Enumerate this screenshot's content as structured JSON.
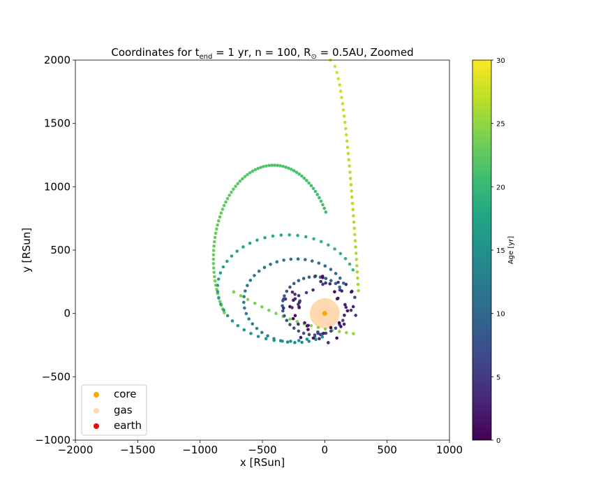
{
  "chart_data": {
    "type": "scatter",
    "title": {
      "prefix": "Coordinates for t",
      "prefix_sub": "end",
      "middle": " = 1 yr, n = 100, R",
      "middle_sub": "⊙",
      "suffix": " = 0.5AU, Zoomed"
    },
    "xlabel": "x [RSun]",
    "ylabel": "y [RSun]",
    "xlim": [
      -2000,
      1000
    ],
    "ylim": [
      -1000,
      2000
    ],
    "xticks": [
      -2000,
      -1500,
      -1000,
      -500,
      0,
      500,
      1000
    ],
    "xtick_labels": [
      "−2000",
      "−1500",
      "−1000",
      "−500",
      "0",
      "500",
      "1000"
    ],
    "yticks": [
      -1000,
      -500,
      0,
      500,
      1000,
      1500,
      2000
    ],
    "ytick_labels": [
      "−1000",
      "−500",
      "0",
      "500",
      "1000",
      "1500",
      "2000"
    ],
    "grid": false,
    "colorbar": {
      "label": "Age [yr]",
      "range": [
        0,
        30
      ],
      "ticks": [
        0,
        5,
        10,
        15,
        20,
        25,
        30
      ],
      "tick_labels": [
        "0",
        "5",
        "10",
        "15",
        "20",
        "25",
        "30"
      ],
      "colormap": "viridis"
    },
    "legend": {
      "placement": "lower-left",
      "entries": [
        {
          "label": "core",
          "color": "#ffa500"
        },
        {
          "label": "gas",
          "color": "#ffdab0"
        },
        {
          "label": "earth",
          "color": "#ff0000"
        }
      ]
    },
    "series": [
      {
        "name": "core",
        "points": [
          [
            0,
            0
          ]
        ],
        "color": "#ffa500"
      },
      {
        "name": "gas",
        "points": [
          [
            0,
            0
          ]
        ],
        "color": "#ffdab0",
        "radius_data": 120
      }
    ],
    "trajectory": {
      "start": {
        "x": 45,
        "y": 2000,
        "age": 28
      },
      "arc1": {
        "type": "path_spiral",
        "from_angle_deg": 0,
        "to_angle_deg": -70,
        "r_from": 270,
        "r_to": 300,
        "age_from": 26,
        "age_to": 25
      },
      "ellipse": {
        "center": [
          -410,
          430
        ],
        "rx": 690,
        "ry": 740,
        "from_angle_deg": 270,
        "to_angle_deg": 45,
        "age_from": 25,
        "age_to": 20
      },
      "spiral": {
        "center": [
          0,
          0
        ],
        "turns": [
          {
            "r": 580,
            "age_from": 20,
            "age_to": 15
          },
          {
            "r": 430,
            "age_from": 15,
            "age_to": 10
          },
          {
            "r": 250,
            "age_from": 10,
            "age_to": 0
          }
        ]
      }
    },
    "samples": [
      {
        "x": 60,
        "y": 1950,
        "age": 28
      },
      {
        "x": 260,
        "y": 400,
        "age": 26
      },
      {
        "x": -1080,
        "y": 850,
        "age": 22
      },
      {
        "x": -830,
        "y": 1160,
        "age": 20
      },
      {
        "x": -200,
        "y": -200,
        "age": 12
      },
      {
        "x": -770,
        "y": 300,
        "age": 15
      },
      {
        "x": 210,
        "y": -60,
        "age": 3
      }
    ]
  }
}
